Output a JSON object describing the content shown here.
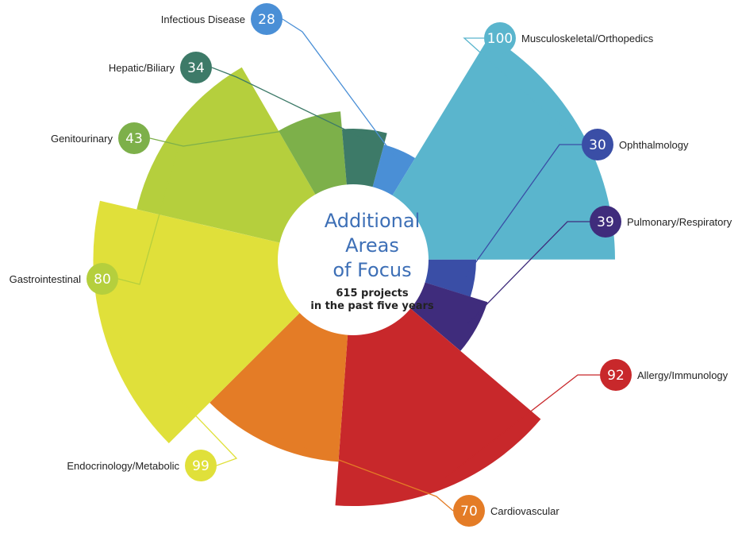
{
  "title": {
    "lines": [
      "Additional",
      "Areas",
      "of Focus"
    ],
    "subtitle_lines": [
      "615 projects",
      "in the past five years"
    ]
  },
  "chart_data": {
    "type": "polar-area",
    "title": "Additional Areas of Focus",
    "subtitle": "615 projects in the past five years",
    "total": 615,
    "categories": [
      {
        "name": "Infectious Disease",
        "value": 28,
        "color": "#4a8fd6"
      },
      {
        "name": "Musculoskeletal/Orthopedics",
        "value": 100,
        "color": "#5ab5cd"
      },
      {
        "name": "Ophthalmology",
        "value": 30,
        "color": "#3a4ea6"
      },
      {
        "name": "Pulmonary/Respiratory",
        "value": 39,
        "color": "#3f2c7c"
      },
      {
        "name": "Allergy/Immunology",
        "value": 92,
        "color": "#c8282b"
      },
      {
        "name": "Cardiovascular",
        "value": 70,
        "color": "#e47c26"
      },
      {
        "name": "Endocrinology/Metabolic",
        "value": 99,
        "color": "#e0e03a"
      },
      {
        "name": "Gastrointestinal",
        "value": 80,
        "color": "#b5cf3d"
      },
      {
        "name": "Genitourinary",
        "value": 43,
        "color": "#7db04a"
      },
      {
        "name": "Hepatic/Biliary",
        "value": 34,
        "color": "#3d7a68"
      }
    ]
  }
}
